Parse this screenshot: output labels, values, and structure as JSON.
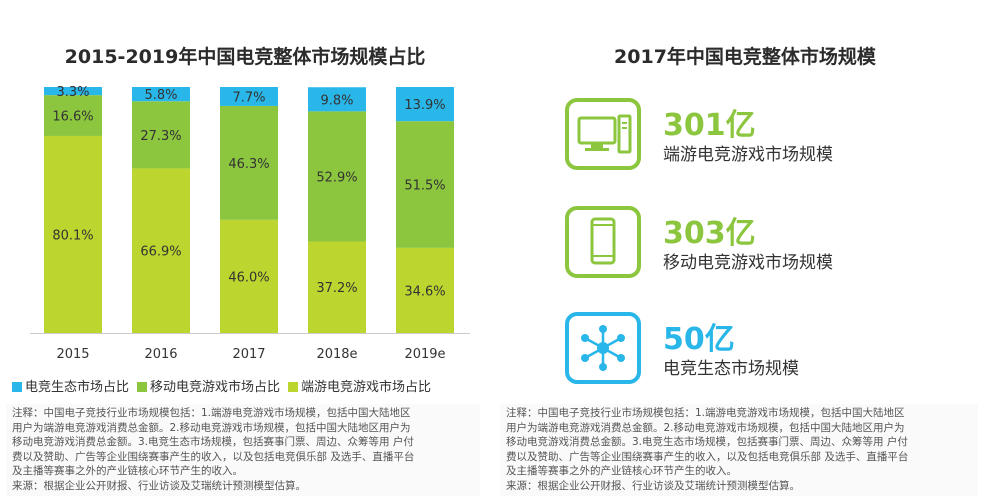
{
  "chart_data": {
    "type": "bar",
    "stacked": true,
    "title": "2015-2019年中国电竞整体市场规模占比",
    "categories": [
      "2015",
      "2016",
      "2017",
      "2018e",
      "2019e"
    ],
    "ylim": [
      0,
      100
    ],
    "grid": false,
    "legend_position": "bottom-left",
    "series": [
      {
        "name": "端游电竞游戏市场占比",
        "color": "#bcd62f",
        "values": [
          80.1,
          66.9,
          46.0,
          37.2,
          34.6
        ],
        "labels": [
          "80.1%",
          "66.9%",
          "46.0%",
          "37.2%",
          "34.6%"
        ]
      },
      {
        "name": "移动电竞游戏市场占比",
        "color": "#8cc63f",
        "values": [
          16.6,
          27.3,
          46.3,
          52.9,
          51.5
        ],
        "labels": [
          "16.6%",
          "27.3%",
          "46.3%",
          "52.9%",
          "51.5%"
        ]
      },
      {
        "name": "电竞生态市场占比",
        "color": "#29b6e8",
        "values": [
          3.3,
          5.8,
          7.7,
          9.8,
          13.9
        ],
        "labels": [
          "3.3%",
          "5.8%",
          "7.7%",
          "9.8%",
          "13.9%"
        ]
      }
    ],
    "legend_order": [
      2,
      1,
      0
    ]
  },
  "summary": {
    "title": "2017年中国电竞整体市场规模",
    "items": [
      {
        "value": "301亿",
        "label": "端游电竞游戏市场规模",
        "icon": "desktop-computer-icon",
        "color": "#8cc63f"
      },
      {
        "value": "303亿",
        "label": "移动电竞游戏市场规模",
        "icon": "mobile-phone-icon",
        "color": "#8cc63f"
      },
      {
        "value": "50亿",
        "label": "电竞生态市场规模",
        "icon": "network-hub-icon",
        "color": "#29b6e8"
      }
    ]
  },
  "notes": {
    "left": [
      "注释：中国电子竞技行业市场规模包括：1.端游电竞游戏市场规模，包括中国大陆地区",
      "用户为端游电竞游戏消费总金额。2.移动电竞游戏市场规模，包括中国大陆地区用户为",
      "移动电竞游戏消费总金额。3.电竞生态市场规模，包括赛事门票、周边、众筹等用 户付",
      "费以及赞助、广告等企业围绕赛事产生的收入，以及包括电竞俱乐部 及选手、直播平台",
      "及主播等赛事之外的产业链核心环节产生的收入。",
      "来源：根据企业公开财报、行业访谈及艾瑞统计预测模型估算。"
    ],
    "right": [
      "注释：中国电子竞技行业市场规模包括：1.端游电竞游戏市场规模，包括中国大陆地区",
      "用户为端游电竞游戏消费总金额。2.移动电竞游戏市场规模，包括中国大陆地区用户为",
      "移动电竞游戏消费总金额。3.电竞生态市场规模，包括赛事门票、周边、众筹等用 户付",
      "费以及赞助、广告等企业围绕赛事产生的收入，以及包括电竞俱乐部 及选手、直播平台",
      "及主播等赛事之外的产业链核心环节产生的收入。",
      "来源：根据企业公开财报、行业访谈及艾瑞统计预测模型估算。"
    ]
  }
}
